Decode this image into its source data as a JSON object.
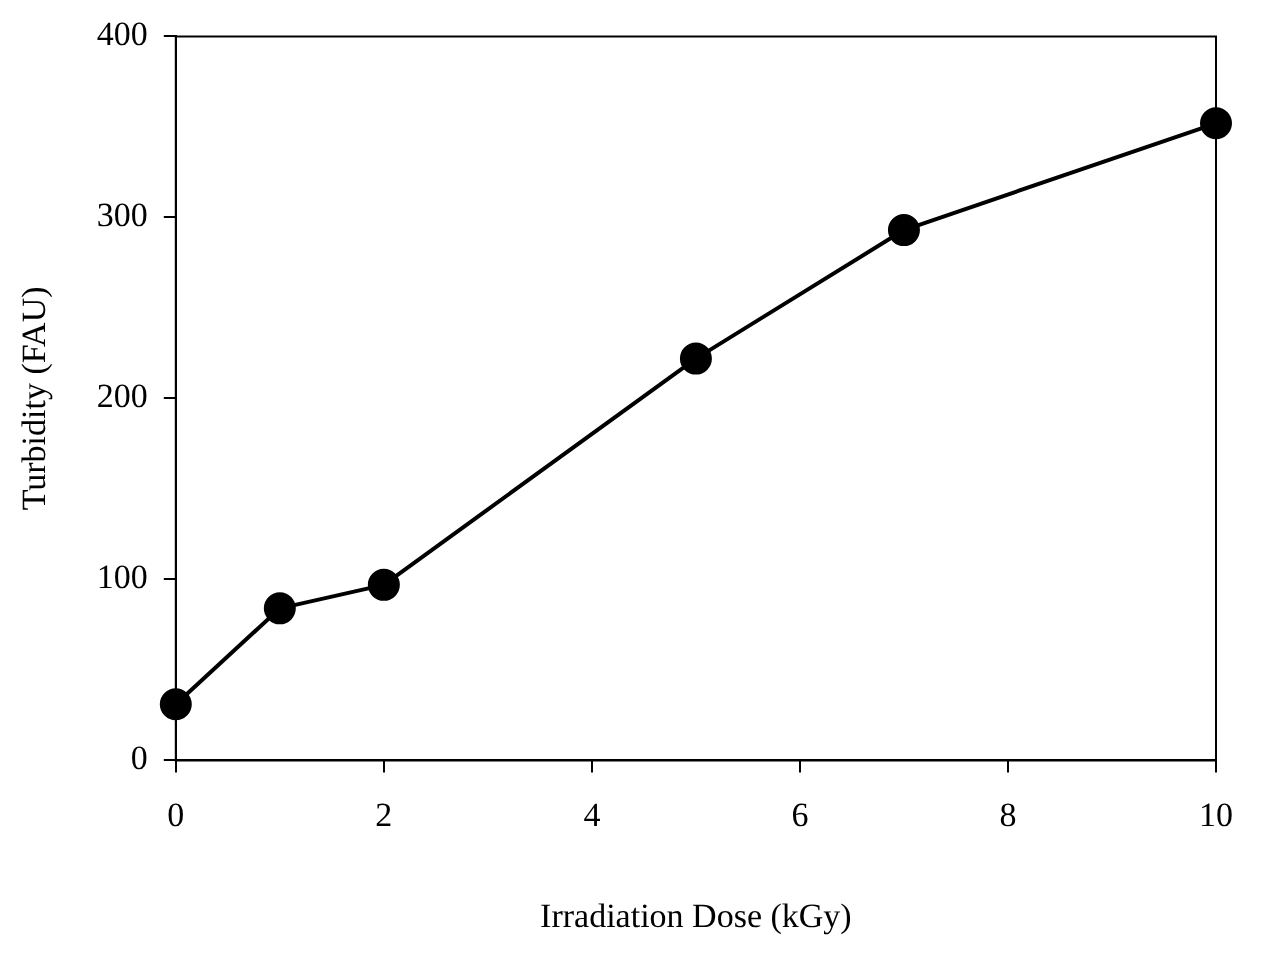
{
  "chart_data": {
    "type": "line",
    "xlabel": "Irradiation Dose (kGy)",
    "ylabel": "Turbidity (FAU)",
    "x": [
      0,
      1,
      2,
      5,
      7,
      10
    ],
    "series": [
      {
        "color": "#000000",
        "values": [
          31,
          84,
          97,
          222,
          293,
          352
        ]
      }
    ],
    "xlim": [
      0,
      10
    ],
    "xticks": [
      0,
      2,
      4,
      6,
      8,
      10
    ],
    "ylim": [
      0,
      400
    ],
    "yticks": [
      0,
      100,
      200,
      300,
      400
    ],
    "grid": false,
    "legend": false,
    "marker": "circle",
    "line_style": "solid"
  }
}
